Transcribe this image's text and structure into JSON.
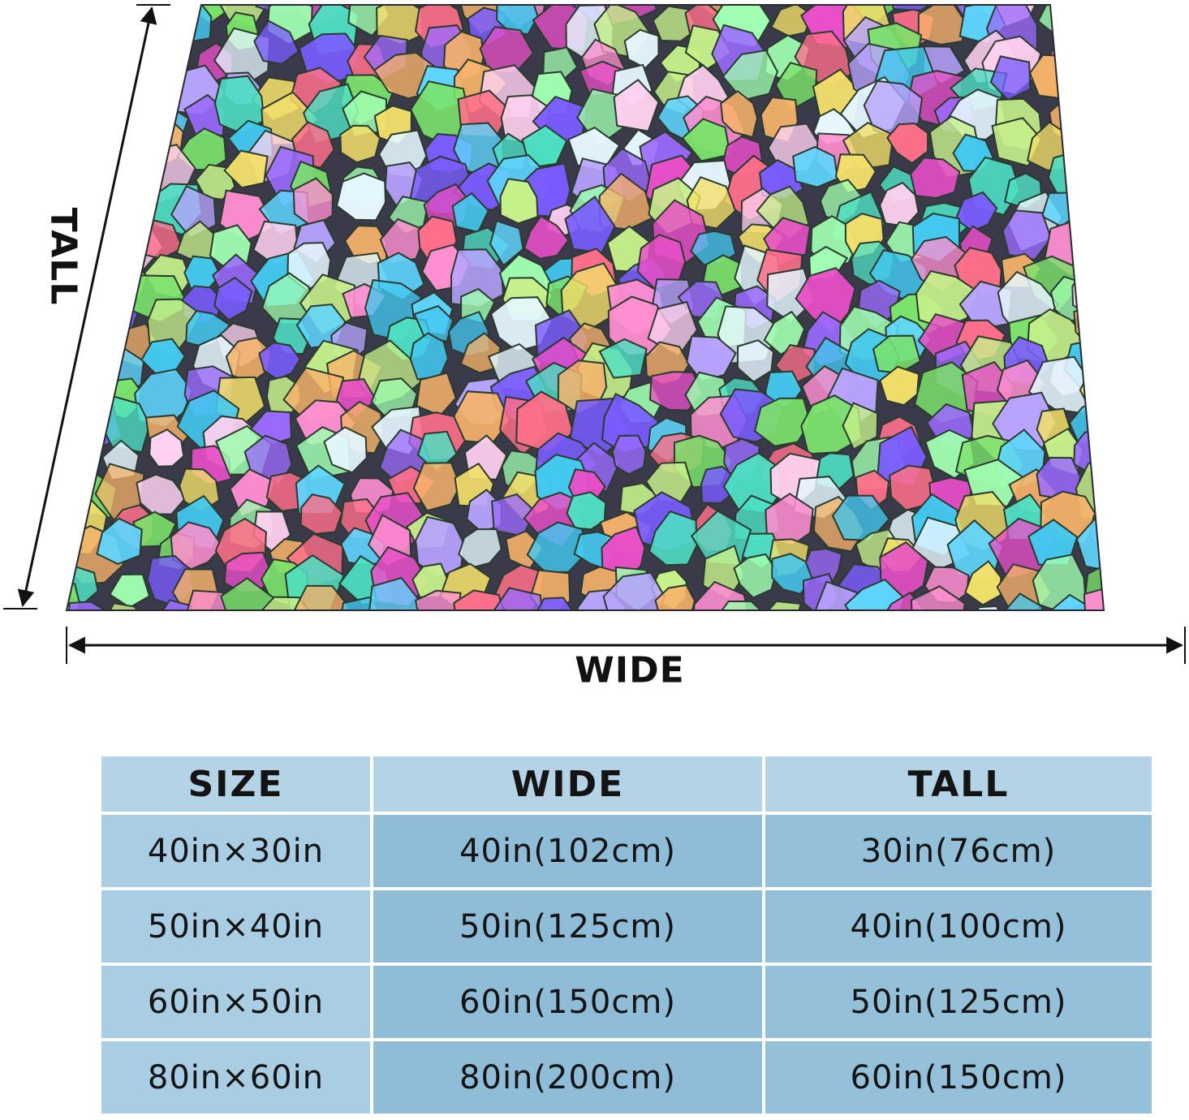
{
  "figure": {
    "wide_label": "WIDE",
    "tall_label": "TALL",
    "blanket_image": "stained-glass-mosaic-blanket",
    "palette": [
      "#e94fc8",
      "#9b6bff",
      "#5fd6ff",
      "#7be36b",
      "#f3e06a",
      "#ff6f8a",
      "#b8a4ff",
      "#4ee0c4",
      "#f7b36a",
      "#c6f08a",
      "#7a5cff",
      "#ffd1f0",
      "#43c9f0",
      "#a0ffb0",
      "#ff8fd1",
      "#e6f7ff"
    ]
  },
  "size_table": {
    "headers": {
      "size": "SIZE",
      "wide": "WIDE",
      "tall": "TALL"
    },
    "rows": [
      {
        "size": "40in×30in",
        "wide": "40in(102cm)",
        "tall": "30in(76cm)"
      },
      {
        "size": "50in×40in",
        "wide": "50in(125cm)",
        "tall": "40in(100cm)"
      },
      {
        "size": "60in×50in",
        "wide": "60in(150cm)",
        "tall": "50in(125cm)"
      },
      {
        "size": "80in×60in",
        "wide": "80in(200cm)",
        "tall": "60in(150cm)"
      }
    ]
  }
}
